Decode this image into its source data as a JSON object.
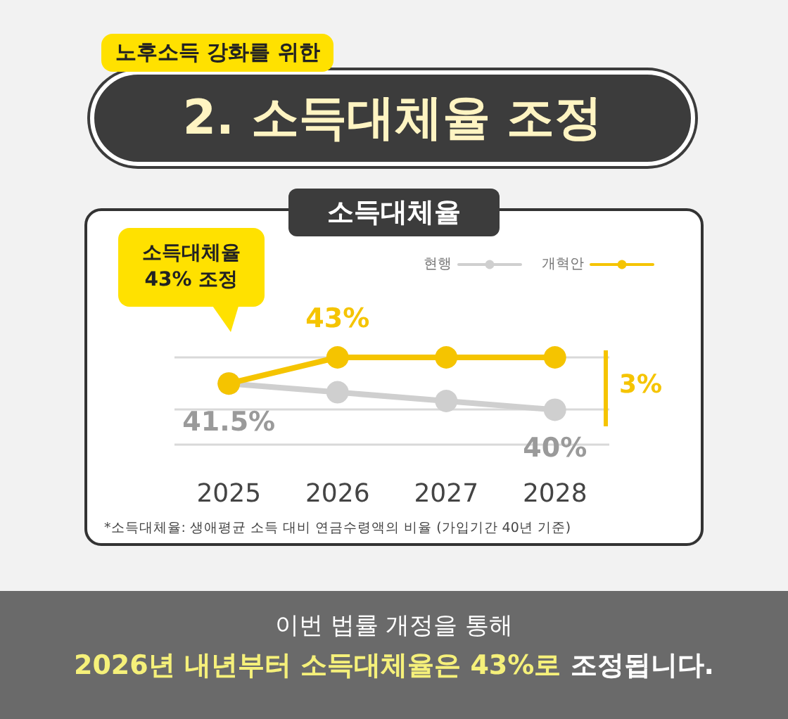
{
  "chart_data": {
    "type": "line",
    "title": "2. 소득대체율 조정",
    "subtitle": "노후소득 강화를 위한",
    "categories": [
      "2025",
      "2026",
      "2027",
      "2028"
    ],
    "series": [
      {
        "name": "현행",
        "color": "#cfcfcf",
        "values": [
          41.5,
          41,
          40.5,
          40
        ],
        "value_labels": [
          "41.5%",
          null,
          null,
          "40%"
        ]
      },
      {
        "name": "개혁안",
        "color": "#f5c400",
        "values": [
          41.5,
          43,
          43,
          43
        ],
        "value_labels": [
          null,
          "43%",
          null,
          null
        ]
      }
    ],
    "yticks": [
      {
        "value": 38,
        "label": null
      },
      {
        "value": 40,
        "label": null
      },
      {
        "value": 43,
        "label": null
      }
    ],
    "tick_labels": "x",
    "grid": "y",
    "legend": "top right",
    "marker": "circle",
    "line_style": "solid",
    "annotations": [
      "소득대체율",
      "소득대체율\n43% 조정",
      "3%",
      "*소득대체율: 생애평균 소득 대비 연금수령액의 비율 (가입기간 40년 기준)",
      "이번 법률 개정을 통해",
      "2026년 내년부터 소득대체율은 43%로",
      "조정됩니다."
    ]
  }
}
